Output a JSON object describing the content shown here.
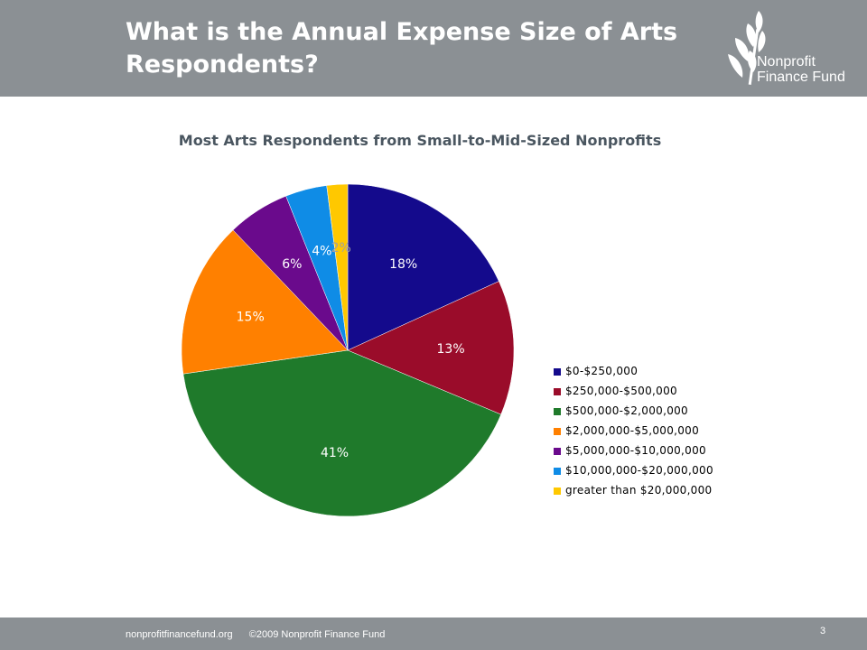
{
  "slide": {
    "title": "What is the Annual Expense Size of Arts Respondents?",
    "logo_line1": "Nonprofit",
    "logo_line2": "Finance Fund",
    "footer_site": "nonprofitfinancefund.org",
    "footer_copyright": "©2009 Nonprofit Finance Fund",
    "page_number": "3"
  },
  "chart_data": {
    "type": "pie",
    "title": "Most Arts Respondents from Small-to-Mid-Sized Nonprofits",
    "categories": [
      "$0-$250,000",
      "$250,000-$500,000",
      "$500,000-$2,000,000",
      "$2,000,000-$5,000,000",
      "$5,000,000-$10,000,000",
      "$10,000,000-$20,000,000",
      "greater than $20,000,000"
    ],
    "values": [
      18,
      13,
      41,
      15,
      6,
      4,
      2
    ],
    "data_labels": [
      "18%",
      "13%",
      "41%",
      "15%",
      "6%",
      "4%",
      "2%"
    ],
    "colors": [
      "#140a8c",
      "#9a0c2a",
      "#1f7a2b",
      "#ff8000",
      "#6a0a8c",
      "#0f8ce6",
      "#ffc800"
    ],
    "label_colors": [
      "#ffffff",
      "#ffffff",
      "#ffffff",
      "#ffffff",
      "#ffffff",
      "#ffffff",
      "#a0a0a0"
    ],
    "legend_position": "right"
  }
}
